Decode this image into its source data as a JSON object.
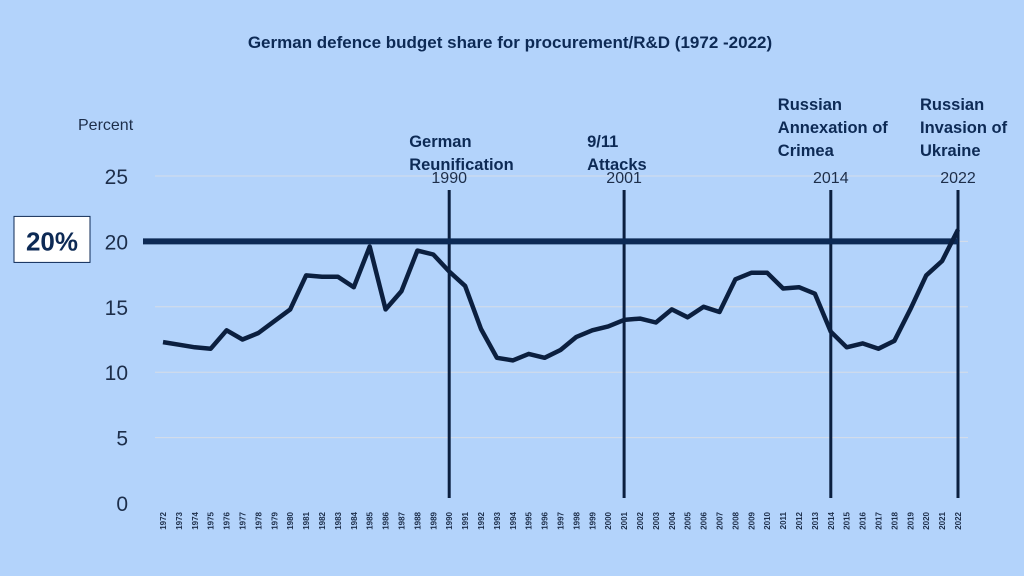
{
  "chart_data": {
    "type": "line",
    "title": "German defence budget share for procurement/R&D (1972 -2022)",
    "ylabel": "Percent",
    "ylim": [
      0,
      25
    ],
    "yticks": [
      0,
      5,
      10,
      15,
      20,
      25
    ],
    "grid": true,
    "x": [
      1972,
      1973,
      1974,
      1975,
      1976,
      1977,
      1978,
      1979,
      1980,
      1981,
      1982,
      1983,
      1984,
      1985,
      1986,
      1987,
      1988,
      1989,
      1990,
      1991,
      1992,
      1993,
      1994,
      1995,
      1996,
      1997,
      1998,
      1999,
      2000,
      2001,
      2002,
      2003,
      2004,
      2005,
      2006,
      2007,
      2008,
      2009,
      2010,
      2011,
      2012,
      2013,
      2014,
      2015,
      2016,
      2017,
      2018,
      2019,
      2020,
      2021,
      2022
    ],
    "values": [
      12.3,
      12.1,
      11.9,
      11.8,
      13.2,
      12.5,
      13.0,
      13.9,
      14.8,
      17.4,
      17.3,
      17.3,
      16.5,
      19.6,
      14.8,
      16.2,
      19.3,
      19.0,
      17.7,
      16.6,
      13.3,
      11.1,
      10.9,
      11.4,
      11.1,
      11.7,
      12.7,
      13.2,
      13.5,
      14.0,
      14.1,
      13.8,
      14.8,
      14.2,
      15.0,
      14.6,
      17.1,
      17.6,
      17.6,
      16.4,
      16.5,
      16.0,
      13.1,
      11.9,
      12.2,
      11.8,
      12.4,
      14.8,
      17.4,
      18.5,
      20.9
    ],
    "reference_line": {
      "value": 20,
      "label": "20%"
    },
    "events": [
      {
        "year": 1990,
        "year_label": "1990",
        "lines": [
          "German",
          "Reunification"
        ]
      },
      {
        "year": 2001,
        "year_label": "2001",
        "lines": [
          "9/11",
          "Attacks"
        ]
      },
      {
        "year": 2014,
        "year_label": "2014",
        "lines": [
          "Russian",
          "Annexation of",
          "Crimea"
        ]
      },
      {
        "year": 2022,
        "year_label": "2022",
        "lines": [
          "Russian",
          "Invasion of",
          "Ukraine"
        ]
      }
    ],
    "colors": {
      "background": "#b3d3fb",
      "line": "#0b1f3f",
      "reference": "#0d2a55",
      "grid": "#d6dde8"
    }
  }
}
